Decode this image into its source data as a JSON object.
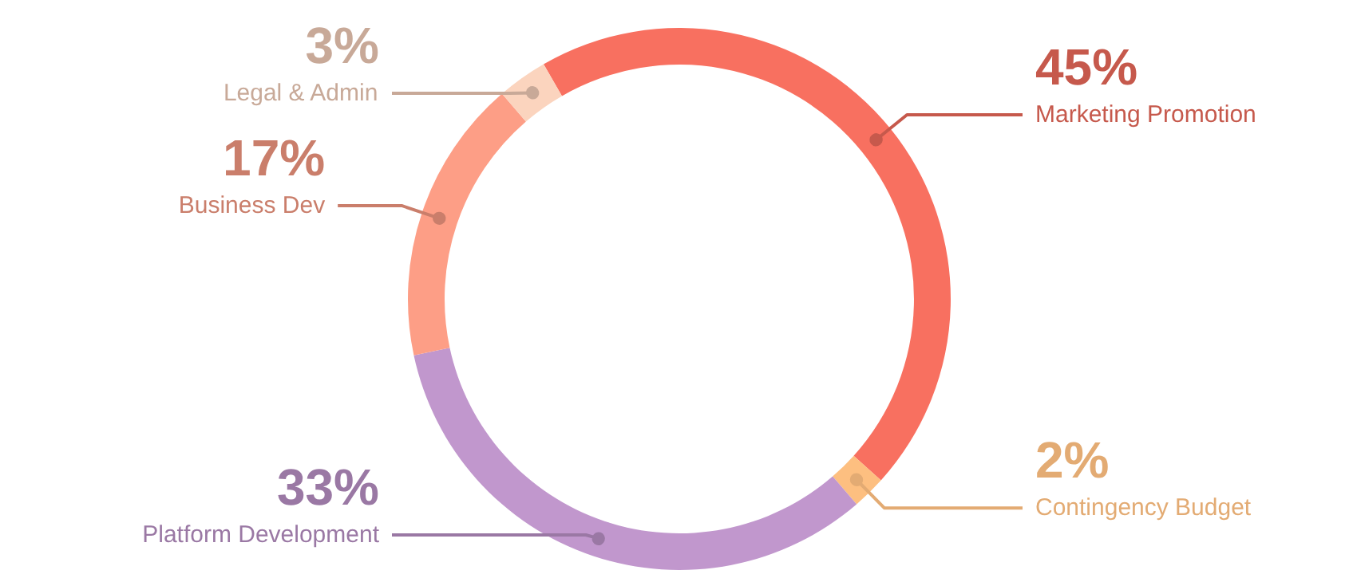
{
  "chart_data": {
    "type": "donut",
    "categories": [
      "Marketing Promotion",
      "Contingency Budget",
      "Platform Development",
      "Business Dev",
      "Legal & Admin"
    ],
    "values": [
      45,
      2,
      33,
      17,
      3
    ],
    "colors": [
      "#f87060",
      "#fdbf80",
      "#c197cd",
      "#fd9e86",
      "#fbd4be"
    ],
    "value_labels": [
      "45%",
      "2%",
      "33%",
      "17%",
      "3%"
    ]
  }
}
